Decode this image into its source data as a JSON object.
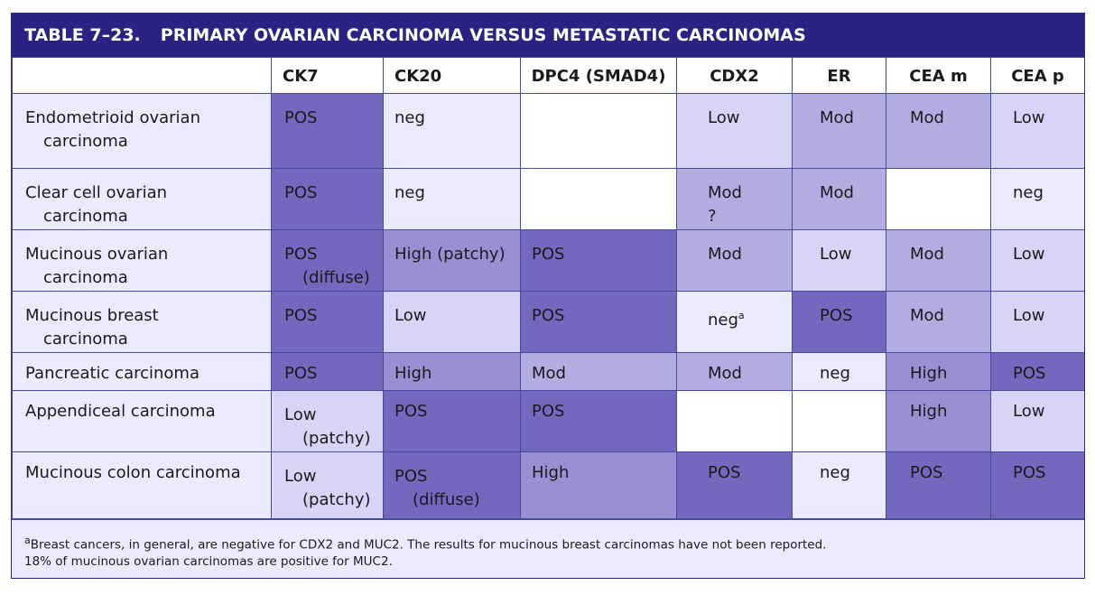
{
  "title": {
    "number": "TABLE 7–23.",
    "text": "PRIMARY OVARIAN CARCINOMA VERSUS METASTATIC CARCINOMAS"
  },
  "columns": [
    "",
    "CK7",
    "CK20",
    "DPC4 (SMAD4)",
    "CDX2",
    "ER",
    "CEA m",
    "CEA p"
  ],
  "rows": [
    {
      "label_line1": "Endometrioid ovarian",
      "label_line2": "carcinoma",
      "cells": [
        {
          "line1": "POS",
          "line2": "",
          "shade": "dark"
        },
        {
          "line1": "neg",
          "line2": "",
          "shade": "vlight"
        },
        {
          "line1": "",
          "line2": "",
          "shade": "white"
        },
        {
          "line1": "Low",
          "line2": "",
          "shade": "light"
        },
        {
          "line1": "Mod",
          "line2": "",
          "shade": "medlight"
        },
        {
          "line1": "Mod",
          "line2": "",
          "shade": "medlight"
        },
        {
          "line1": "Low",
          "line2": "",
          "shade": "light"
        }
      ]
    },
    {
      "label_line1": "Clear cell ovarian",
      "label_line2": "carcinoma",
      "cells": [
        {
          "line1": "POS",
          "line2": "",
          "shade": "dark"
        },
        {
          "line1": "neg",
          "line2": "",
          "shade": "vlight"
        },
        {
          "line1": "",
          "line2": "",
          "shade": "white"
        },
        {
          "line1": "Mod",
          "line2": "?",
          "shade": "medlight"
        },
        {
          "line1": "Mod",
          "line2": "",
          "shade": "medlight"
        },
        {
          "line1": "",
          "line2": "",
          "shade": "white"
        },
        {
          "line1": "neg",
          "line2": "",
          "shade": "vlight"
        }
      ]
    },
    {
      "label_line1": "Mucinous ovarian",
      "label_line2": "carcinoma",
      "cells": [
        {
          "line1": "POS",
          "line2": "(diffuse)",
          "shade": "dark"
        },
        {
          "line1": "High (patchy)",
          "line2": "",
          "shade": "med"
        },
        {
          "line1": "POS",
          "line2": "",
          "shade": "dark"
        },
        {
          "line1": "Mod",
          "line2": "",
          "shade": "medlight"
        },
        {
          "line1": "Low",
          "line2": "",
          "shade": "light"
        },
        {
          "line1": "Mod",
          "line2": "",
          "shade": "medlight"
        },
        {
          "line1": "Low",
          "line2": "",
          "shade": "light"
        }
      ]
    },
    {
      "label_line1": "Mucinous breast",
      "label_line2": "carcinoma",
      "cells": [
        {
          "line1": "POS",
          "line2": "",
          "shade": "dark"
        },
        {
          "line1": "Low",
          "line2": "",
          "shade": "light"
        },
        {
          "line1": "POS",
          "line2": "",
          "shade": "dark"
        },
        {
          "line1": "neg",
          "sup": "a",
          "line2": "",
          "shade": "vlight"
        },
        {
          "line1": "POS",
          "line2": "",
          "shade": "dark"
        },
        {
          "line1": "Mod",
          "line2": "",
          "shade": "medlight"
        },
        {
          "line1": "Low",
          "line2": "",
          "shade": "light"
        }
      ]
    },
    {
      "label_line1": "Pancreatic carcinoma",
      "label_line2": "",
      "cells": [
        {
          "line1": "POS",
          "line2": "",
          "shade": "dark"
        },
        {
          "line1": "High",
          "line2": "",
          "shade": "med"
        },
        {
          "line1": "Mod",
          "line2": "",
          "shade": "medlight"
        },
        {
          "line1": "Mod",
          "line2": "",
          "shade": "medlight"
        },
        {
          "line1": "neg",
          "line2": "",
          "shade": "vlight"
        },
        {
          "line1": "High",
          "line2": "",
          "shade": "med"
        },
        {
          "line1": "POS",
          "line2": "",
          "shade": "dark"
        }
      ]
    },
    {
      "label_line1": "Appendiceal carcinoma",
      "label_line2": "",
      "cells": [
        {
          "line1": "Low",
          "line2": "(patchy)",
          "shade": "light"
        },
        {
          "line1": "POS",
          "line2": "",
          "shade": "dark"
        },
        {
          "line1": "POS",
          "line2": "",
          "shade": "dark"
        },
        {
          "line1": "",
          "line2": "",
          "shade": "white"
        },
        {
          "line1": "",
          "line2": "",
          "shade": "white"
        },
        {
          "line1": "High",
          "line2": "",
          "shade": "med"
        },
        {
          "line1": "Low",
          "line2": "",
          "shade": "light"
        }
      ]
    },
    {
      "label_line1": "Mucinous colon carcinoma",
      "label_line2": "",
      "cells": [
        {
          "line1": "Low",
          "line2": "(patchy)",
          "shade": "light"
        },
        {
          "line1": "POS",
          "line2": "(diffuse)",
          "shade": "dark"
        },
        {
          "line1": "High",
          "line2": "",
          "shade": "med"
        },
        {
          "line1": "POS",
          "line2": "",
          "shade": "dark"
        },
        {
          "line1": "neg",
          "line2": "",
          "shade": "vlight"
        },
        {
          "line1": "POS",
          "line2": "",
          "shade": "dark"
        },
        {
          "line1": "POS",
          "line2": "",
          "shade": "dark"
        }
      ]
    }
  ],
  "footnotes": {
    "sup": "a",
    "note_a": "Breast cancers, in general, are negative for CDX2 and MUC2. The results for mucinous breast carcinomas have not been reported.",
    "note_2": "18% of mucinous ovarian carcinomas are positive for MUC2."
  },
  "colors": {
    "header": "#2a2383",
    "white": "#ffffff",
    "vlight": "#eceaff",
    "light": "#d8d4f7",
    "medlight": "#b3ade2",
    "med": "#9a8fd2",
    "dark": "#7467be"
  }
}
